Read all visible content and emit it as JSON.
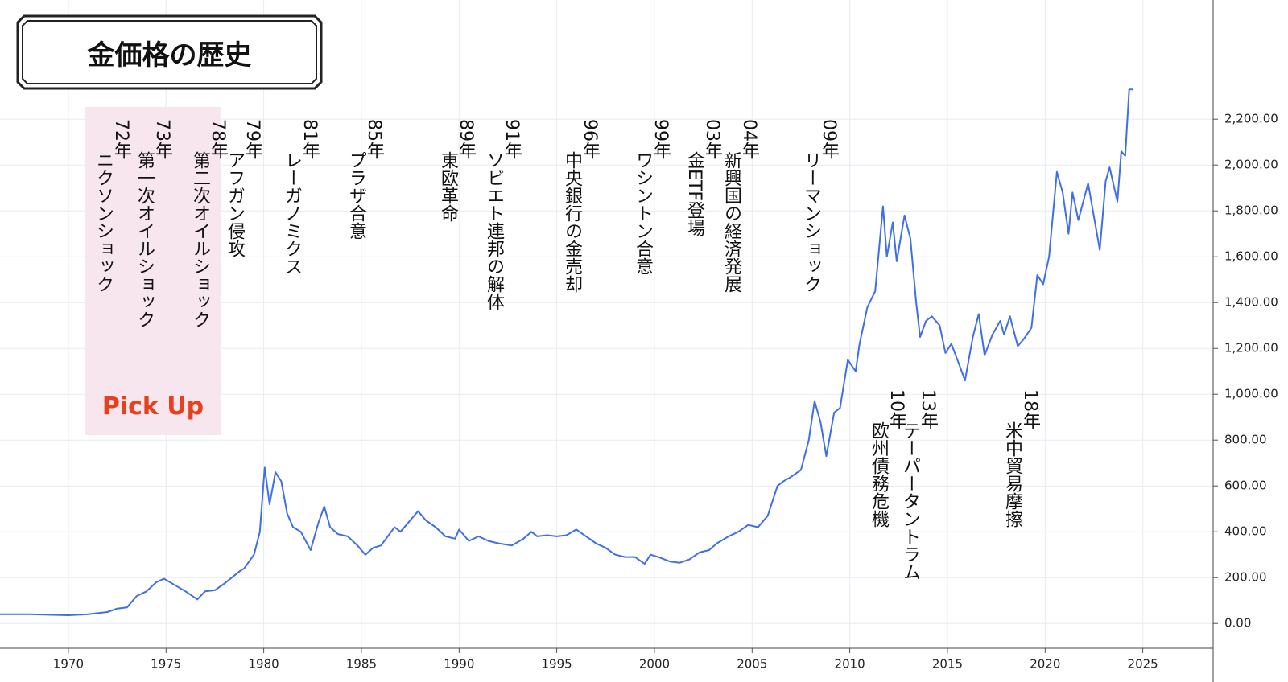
{
  "chart_data": {
    "type": "line",
    "title": "金価格の歴史",
    "highlight_label": "Pick Up",
    "x": [
      1966.5,
      1968,
      1970,
      1971,
      1972,
      1972.5,
      1973,
      1973.5,
      1974,
      1974.5,
      1974.9,
      1975.5,
      1976,
      1976.6,
      1977,
      1977.5,
      1978,
      1978.8,
      1979,
      1979.5,
      1979.8,
      1980.05,
      1980.3,
      1980.6,
      1980.9,
      1981.2,
      1981.5,
      1981.9,
      1982.4,
      1982.8,
      1983.1,
      1983.4,
      1983.8,
      1984.3,
      1984.8,
      1985.2,
      1985.6,
      1986,
      1986.7,
      1987,
      1987.5,
      1987.9,
      1988.3,
      1988.8,
      1989.3,
      1989.8,
      1990,
      1990.5,
      1991,
      1991.5,
      1992,
      1992.7,
      1993.3,
      1993.7,
      1994,
      1994.5,
      1995,
      1995.5,
      1996,
      1996.5,
      1997,
      1997.5,
      1998,
      1998.5,
      1999,
      1999.5,
      1999.8,
      2000.2,
      2000.8,
      2001.3,
      2001.8,
      2002.3,
      2002.8,
      2003.2,
      2003.8,
      2004.3,
      2004.8,
      2005.3,
      2005.8,
      2006.3,
      2006.6,
      2007,
      2007.5,
      2007.9,
      2008.2,
      2008.5,
      2008.8,
      2009.2,
      2009.5,
      2009.9,
      2010.3,
      2010.5,
      2010.9,
      2011.3,
      2011.7,
      2011.9,
      2012.2,
      2012.4,
      2012.8,
      2013.1,
      2013.4,
      2013.6,
      2013.9,
      2014.2,
      2014.6,
      2014.9,
      2015.2,
      2015.6,
      2015.9,
      2016.3,
      2016.6,
      2016.9,
      2017.3,
      2017.7,
      2017.9,
      2018.2,
      2018.6,
      2018.9,
      2019.3,
      2019.6,
      2019.9,
      2020.2,
      2020.6,
      2020.9,
      2021.2,
      2021.4,
      2021.7,
      2022.2,
      2022.8,
      2023.1,
      2023.3,
      2023.7,
      2023.9,
      2024.1,
      2024.3,
      2024.5
    ],
    "series": [
      {
        "color": "#3e6fe8",
        "values": [
          40,
          40,
          36,
          40,
          50,
          65,
          70,
          120,
          140,
          180,
          195,
          165,
          140,
          105,
          140,
          145,
          175,
          230,
          240,
          300,
          400,
          680,
          520,
          660,
          620,
          480,
          420,
          400,
          320,
          440,
          510,
          420,
          390,
          380,
          340,
          300,
          330,
          340,
          420,
          400,
          450,
          490,
          450,
          420,
          380,
          370,
          410,
          360,
          380,
          360,
          350,
          340,
          370,
          400,
          380,
          385,
          380,
          385,
          410,
          380,
          350,
          330,
          300,
          290,
          290,
          260,
          300,
          290,
          270,
          265,
          280,
          310,
          320,
          350,
          380,
          400,
          430,
          420,
          470,
          600,
          620,
          640,
          670,
          800,
          970,
          880,
          730,
          920,
          940,
          1150,
          1100,
          1220,
          1380,
          1450,
          1820,
          1600,
          1750,
          1580,
          1780,
          1680,
          1400,
          1250,
          1320,
          1340,
          1300,
          1180,
          1220,
          1130,
          1060,
          1250,
          1350,
          1170,
          1260,
          1320,
          1260,
          1340,
          1210,
          1240,
          1290,
          1520,
          1480,
          1600,
          1970,
          1880,
          1700,
          1880,
          1760,
          1920,
          1630,
          1930,
          1990,
          1840,
          2060,
          2040,
          2330,
          2330
        ]
      }
    ],
    "xlim": [
      1966.5,
      2028.6
    ],
    "ylim": [
      -108,
      2720
    ],
    "xticks": [
      1970,
      1975,
      1980,
      1985,
      1990,
      1995,
      2000,
      2005,
      2010,
      2015,
      2020,
      2025
    ],
    "yticks": [
      {
        "value": 0,
        "label": "0.00"
      },
      {
        "value": 200,
        "label": "200.00"
      },
      {
        "value": 400,
        "label": "400.00"
      },
      {
        "value": 600,
        "label": "600.00"
      },
      {
        "value": 800,
        "label": "800.00"
      },
      {
        "value": 1000,
        "label": "1,000.00"
      },
      {
        "value": 1200,
        "label": "1,200.00"
      },
      {
        "value": 1400,
        "label": "1,400.00"
      },
      {
        "value": 1600,
        "label": "1,600.00"
      },
      {
        "value": 1800,
        "label": "1,800.00"
      },
      {
        "value": 2000,
        "label": "2,000.00"
      },
      {
        "value": 2200,
        "label": "2,200.00"
      }
    ],
    "grid": true,
    "annotations": [
      {
        "year": "72年",
        "event": "ニクソンショック"
      },
      {
        "year": "73年",
        "event": "第一次オイルショック"
      },
      {
        "year": "78年",
        "event": "第二次オイルショック"
      },
      {
        "year": "79年",
        "event": "アフガン侵攻"
      },
      {
        "year": "81年",
        "event": "レーガノミクス"
      },
      {
        "year": "85年",
        "event": "プラザ合意"
      },
      {
        "year": "89年",
        "event": "東欧革命"
      },
      {
        "year": "91年",
        "event": "ソビエト連邦の解体"
      },
      {
        "year": "96年",
        "event": "中央銀行の金売却"
      },
      {
        "year": "99年",
        "event": "ワシントン合意"
      },
      {
        "year": "03年",
        "event": "金ETF登場"
      },
      {
        "year": "04年",
        "event": "新興国の経済発展"
      },
      {
        "year": "09年",
        "event": "リーマンショック"
      },
      {
        "year": "10年",
        "event": "欧州債務危機"
      },
      {
        "year": "13年",
        "event": "テーパータントラム"
      },
      {
        "year": "18年",
        "event": "米中貿易摩擦"
      }
    ]
  }
}
